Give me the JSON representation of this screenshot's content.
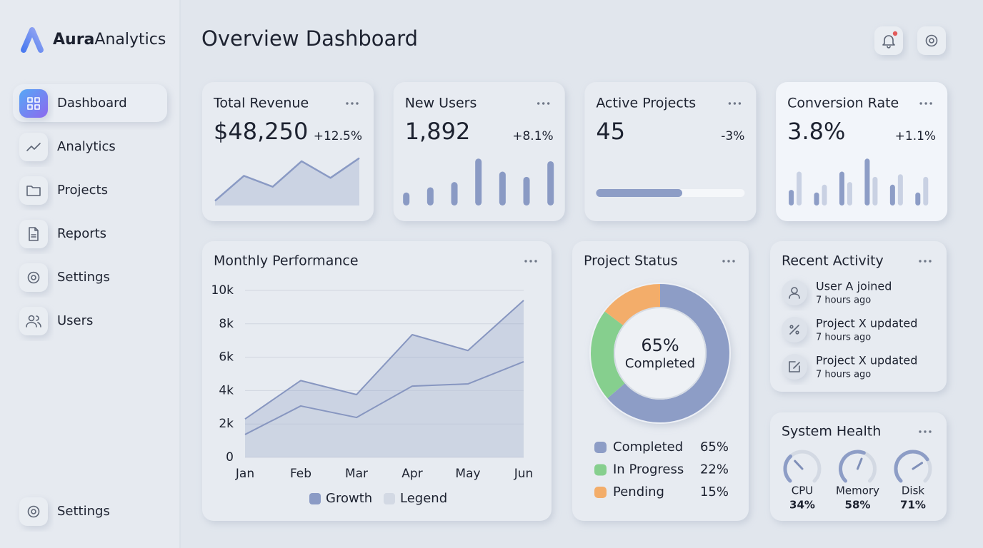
{
  "brand": {
    "name_strong": "Aura",
    "name_light": "Analytics"
  },
  "nav": [
    {
      "label": "Dashboard",
      "icon": "grid",
      "active": true
    },
    {
      "label": "Analytics",
      "icon": "trend"
    },
    {
      "label": "Projects",
      "icon": "folder"
    },
    {
      "label": "Reports",
      "icon": "file"
    },
    {
      "label": "Settings",
      "icon": "gear"
    },
    {
      "label": "Users",
      "icon": "users"
    }
  ],
  "nav_footer": {
    "label": "Settings",
    "icon": "gear"
  },
  "header": {
    "title": "Overview Dashboard"
  },
  "kpis": [
    {
      "title": "Total Revenue",
      "value": "$48,250",
      "change": "+12.5%",
      "trend": "up",
      "chart": {
        "type": "area",
        "color": "#8a9ac4",
        "ylim": [
          0,
          10
        ],
        "values": [
          0.9,
          5.7,
          3.6,
          8.5,
          5.3,
          9.1
        ]
      }
    },
    {
      "title": "New Users",
      "value": "1,892",
      "change": "+8.1%",
      "trend": "up",
      "chart": {
        "type": "bar",
        "color": "#8a9ac4",
        "ylim": [
          0,
          10
        ],
        "values": [
          2.5,
          3.5,
          4.5,
          9,
          6.5,
          5.5,
          8.5
        ]
      }
    },
    {
      "title": "Active Projects",
      "value": "45",
      "change": "-3%",
      "trend": "down",
      "chart": {
        "type": "progress",
        "color": "#8d9dc6",
        "ylim": [
          0,
          100
        ],
        "values": [
          58
        ]
      }
    },
    {
      "title": "Conversion Rate",
      "value": "3.8%",
      "change": "+1.1%",
      "trend": "up",
      "highlight": true,
      "chart": {
        "type": "paired-bar",
        "ylim": [
          0,
          10
        ],
        "series": [
          {
            "color": "#8d9dc6",
            "values": [
              3,
              2.5,
              6.5,
              9,
              4,
              2.5
            ]
          },
          {
            "color": "#c9d1e3",
            "values": [
              6.5,
              4,
              4.5,
              5.5,
              6,
              5.5
            ]
          }
        ]
      }
    }
  ],
  "performance": {
    "type": "area",
    "title": "Monthly Performance",
    "categories": [
      "Jan",
      "Feb",
      "Mar",
      "Apr",
      "May",
      "Jun"
    ],
    "series": [
      {
        "name": "Growth",
        "color": "#8b9bc5",
        "values": [
          2300,
          4600,
          3760,
          7350,
          6400,
          9400
        ]
      },
      {
        "name": "Legend",
        "color": "#d3d9e4",
        "values": [
          1370,
          3080,
          2390,
          4270,
          4400,
          5730
        ]
      }
    ],
    "ylim": [
      0,
      10000
    ],
    "yticks": [
      0,
      {
        "value": 2000,
        "label": "2k"
      },
      {
        "value": 4000,
        "label": "4k"
      },
      {
        "value": 6000,
        "label": "6k"
      },
      {
        "value": 8000,
        "label": "8k"
      },
      {
        "value": 10000,
        "label": "10k"
      }
    ],
    "grid": true
  },
  "status": {
    "type": "donut",
    "title": "Project Status",
    "center_text": "65%",
    "center_label": "Completed",
    "categories": [
      "Completed",
      "In Progress",
      "Pending"
    ],
    "values": [
      65,
      22,
      15
    ],
    "value_labels": [
      "65%",
      "22%",
      "15%"
    ],
    "colors": [
      "#8d9dc6",
      "#86cf8e",
      "#f3ad6a"
    ]
  },
  "activity": {
    "title": "Recent Activity",
    "items": [
      {
        "title": "User A joined",
        "time": "7 hours ago",
        "icon": "user"
      },
      {
        "title": "Project X updated",
        "time": "7 hours ago",
        "icon": "percent"
      },
      {
        "title": "Project X updated",
        "time": "7 hours ago",
        "icon": "edit"
      }
    ]
  },
  "health": {
    "type": "gauge",
    "title": "System Health",
    "categories": [
      "CPU",
      "Memory",
      "Disk"
    ],
    "values": [
      34,
      58,
      71
    ],
    "value_labels": [
      "34%",
      "58%",
      "71%"
    ],
    "ylim": [
      0,
      100
    ],
    "color": "#8d9dc6"
  }
}
